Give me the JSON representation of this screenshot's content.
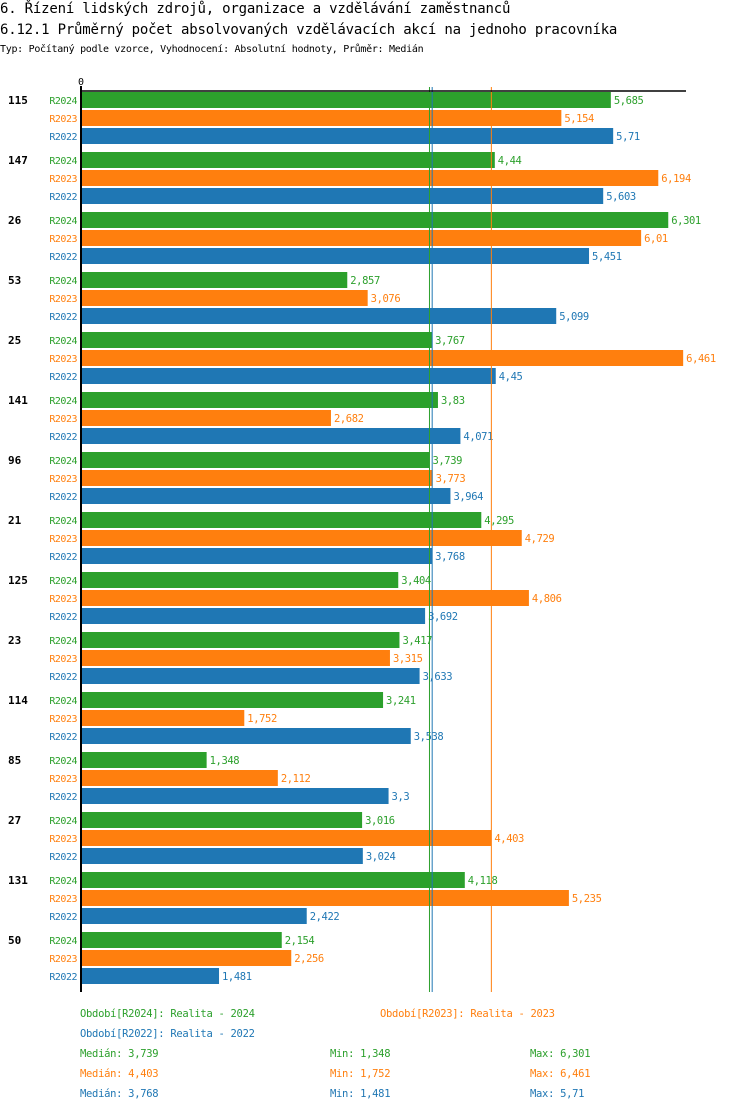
{
  "header": {
    "title": "6. Řízení lidských zdrojů, organizace a vzdělávání zaměstnanců",
    "subtitle": "6.12.1 Průměrný počet absolvovaných vzdělávacích akcí na jednoho pracovníka",
    "info": "Typ: Počítaný podle vzorce, Vyhodnocení: Absolutní hodnoty, Průměr: Medián"
  },
  "colors": {
    "R2024": "#2ca02c",
    "R2023": "#ff7f0e",
    "R2022": "#1f77b4",
    "axis": "#000000"
  },
  "chart_data": {
    "type": "bar",
    "orientation": "horizontal",
    "title": "6.12.1 Průměrný počet absolvovaných vzdělávacích akcí na jednoho pracovníka",
    "xlabel": "",
    "ylabel": "",
    "x_tick_labels": [
      "0"
    ],
    "xlim": [
      0,
      6.5
    ],
    "grid": false,
    "legend_position": "bottom",
    "categories": [
      "115",
      "147",
      "26",
      "53",
      "25",
      "141",
      "96",
      "21",
      "125",
      "23",
      "114",
      "85",
      "27",
      "131",
      "50"
    ],
    "series": [
      {
        "name": "R2024",
        "values": [
          5.685,
          4.44,
          6.301,
          2.857,
          3.767,
          3.83,
          3.739,
          4.295,
          3.404,
          3.417,
          3.241,
          1.348,
          3.016,
          4.118,
          2.154
        ],
        "labels": [
          "5,685",
          "4,44",
          "6,301",
          "2,857",
          "3,767",
          "3,83",
          "3,739",
          "4,295",
          "3,404",
          "3,417",
          "3,241",
          "1,348",
          "3,016",
          "4,118",
          "2,154"
        ]
      },
      {
        "name": "R2023",
        "values": [
          5.154,
          6.194,
          6.01,
          3.076,
          6.461,
          2.682,
          3.773,
          4.729,
          4.806,
          3.315,
          1.752,
          2.112,
          4.403,
          5.235,
          2.256
        ],
        "labels": [
          "5,154",
          "6,194",
          "6,01",
          "3,076",
          "6,461",
          "2,682",
          "3,773",
          "4,729",
          "4,806",
          "3,315",
          "1,752",
          "2,112",
          "4,403",
          "5,235",
          "2,256"
        ]
      },
      {
        "name": "R2022",
        "values": [
          5.71,
          5.603,
          5.451,
          5.099,
          4.45,
          4.071,
          3.964,
          3.768,
          3.692,
          3.633,
          3.538,
          3.3,
          3.024,
          2.422,
          1.481
        ],
        "labels": [
          "5,71",
          "5,603",
          "5,451",
          "5,099",
          "4,45",
          "4,071",
          "3,964",
          "3,768",
          "3,692",
          "3,633",
          "3,538",
          "3,3",
          "3,024",
          "2,422",
          "1,481"
        ]
      }
    ],
    "reference_lines": [
      {
        "series": "R2024",
        "kind": "median",
        "value": 3.739
      },
      {
        "series": "R2022",
        "kind": "median",
        "value": 3.768
      },
      {
        "series": "R2023",
        "kind": "median",
        "value": 4.403
      }
    ]
  },
  "legend": {
    "periods": [
      {
        "series": "R2024",
        "text": "Období[R2024]: Realita - 2024"
      },
      {
        "series": "R2023",
        "text": "Období[R2023]: Realita - 2023"
      },
      {
        "series": "R2022",
        "text": "Období[R2022]: Realita - 2022"
      }
    ],
    "stats": [
      {
        "series": "R2024",
        "median": "Medián: 3,739",
        "min": "Min: 1,348",
        "max": "Max: 6,301"
      },
      {
        "series": "R2023",
        "median": "Medián: 4,403",
        "min": "Min: 1,752",
        "max": "Max: 6,461"
      },
      {
        "series": "R2022",
        "median": "Medián: 3,768",
        "min": "Min: 1,481",
        "max": "Max: 5,71"
      }
    ]
  }
}
